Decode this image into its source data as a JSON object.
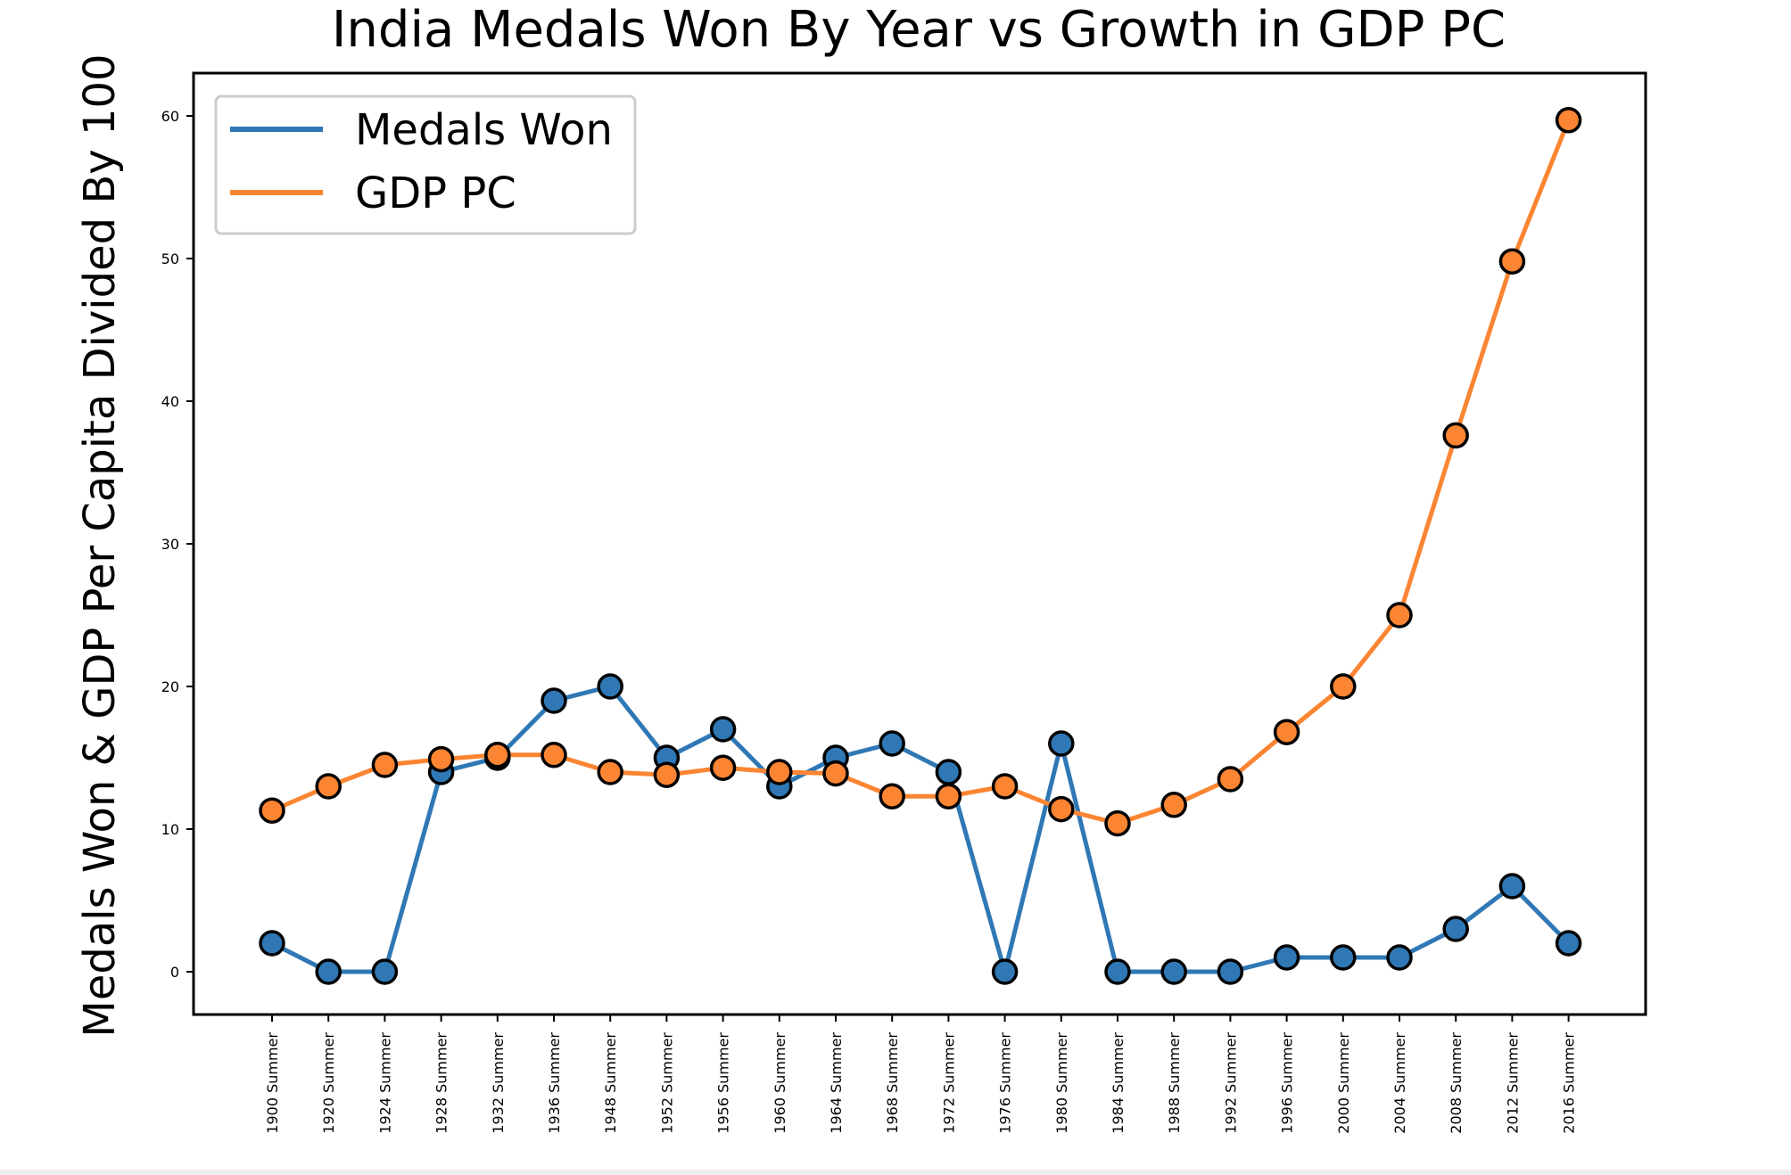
{
  "colors": {
    "medals": "#2f78b5",
    "gdp": "#fb8532",
    "marker_edge": "#000000",
    "frame": "#000000",
    "legend_border": "#cccccc"
  },
  "chart_data": {
    "type": "line",
    "title": "India Medals Won By Year vs Growth in GDP PC",
    "xlabel": "",
    "ylabel": "Medals Won & GDP Per Capita Divided By 100",
    "ylim": [
      -3,
      63
    ],
    "yticks": [
      0,
      10,
      20,
      30,
      40,
      50,
      60
    ],
    "grid": false,
    "legend_position": "top-left",
    "categories": [
      "1900 Summer",
      "1920 Summer",
      "1924 Summer",
      "1928 Summer",
      "1932 Summer",
      "1936 Summer",
      "1948 Summer",
      "1952 Summer",
      "1956 Summer",
      "1960 Summer",
      "1964 Summer",
      "1968 Summer",
      "1972 Summer",
      "1976 Summer",
      "1980 Summer",
      "1984 Summer",
      "1988 Summer",
      "1992 Summer",
      "1996 Summer",
      "2000 Summer",
      "2004 Summer",
      "2008 Summer",
      "2012 Summer",
      "2016 Summer"
    ],
    "series": [
      {
        "name": "Medals Won",
        "color_key": "medals",
        "values": [
          2,
          0,
          0,
          14,
          15,
          19,
          20,
          15,
          17,
          13,
          15,
          16,
          14,
          0,
          16,
          0,
          0,
          0,
          1,
          1,
          1,
          3,
          6,
          2
        ]
      },
      {
        "name": "GDP PC",
        "color_key": "gdp",
        "values": [
          11.3,
          13,
          14.5,
          14.9,
          15.2,
          15.2,
          14,
          13.8,
          14.3,
          14,
          13.9,
          12.3,
          12.3,
          13,
          11.4,
          10.4,
          11.7,
          13.5,
          16.8,
          20,
          25,
          37.6,
          49.8,
          59.7
        ]
      }
    ]
  }
}
